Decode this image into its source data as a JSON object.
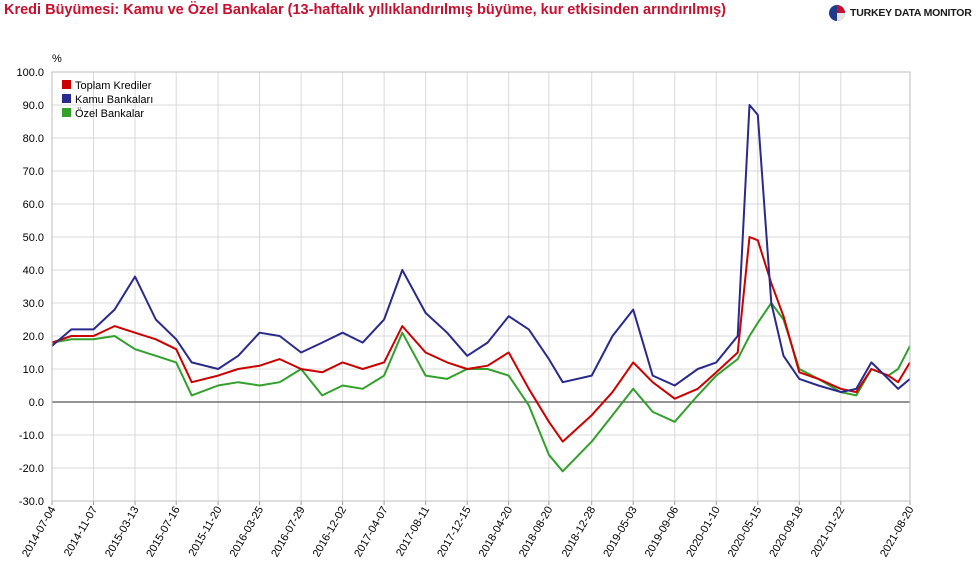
{
  "title": "Kredi Büyümesi: Kamu ve Özel Bankalar (13-haftalık yıllıklandırılmış büyüme, kur etkisinden arındırılmış)",
  "brand": "TURKEY DATA MONITOR",
  "chart_data": {
    "type": "line",
    "title": "Kredi Büyümesi: Kamu ve Özel Bankalar (13-haftalık yıllıklandırılmış büyüme, kur etkisinden arındırılmış)",
    "ylabel": "%",
    "ylim": [
      -30,
      100
    ],
    "yticks": [
      "100.0",
      "90.0",
      "80.0",
      "70.0",
      "60.0",
      "50.0",
      "40.0",
      "30.0",
      "20.0",
      "10.0",
      "0.0",
      "-10.0",
      "-20.0",
      "-30.0"
    ],
    "xlim": [
      "2014-07-04",
      "2021-08-20"
    ],
    "xticks": [
      "2014-07-04",
      "2014-11-07",
      "2015-03-13",
      "2015-07-16",
      "2015-11-20",
      "2016-03-25",
      "2016-07-29",
      "2016-12-02",
      "2017-04-07",
      "2017-08-11",
      "2017-12-15",
      "2018-04-20",
      "2018-08-20",
      "2018-12-28",
      "2019-05-03",
      "2019-09-06",
      "2020-01-10",
      "2020-05-15",
      "2020-09-18",
      "2021-01-22",
      "2021-08-20"
    ],
    "grid": true,
    "legend_position": "top-left",
    "series": [
      {
        "name": "Toplam Krediler",
        "color": "#cc0000",
        "x": [
          "2014-07-04",
          "2014-09-01",
          "2014-11-07",
          "2015-01-10",
          "2015-03-13",
          "2015-05-15",
          "2015-07-16",
          "2015-09-01",
          "2015-11-20",
          "2016-01-20",
          "2016-03-25",
          "2016-05-25",
          "2016-07-29",
          "2016-10-01",
          "2016-12-02",
          "2017-02-01",
          "2017-04-07",
          "2017-06-01",
          "2017-08-11",
          "2017-10-15",
          "2017-12-15",
          "2018-02-15",
          "2018-04-20",
          "2018-06-20",
          "2018-08-20",
          "2018-10-01",
          "2018-12-28",
          "2019-03-01",
          "2019-05-03",
          "2019-07-01",
          "2019-09-06",
          "2019-11-15",
          "2020-01-10",
          "2020-03-15",
          "2020-04-20",
          "2020-05-15",
          "2020-06-25",
          "2020-08-01",
          "2020-09-18",
          "2020-11-15",
          "2021-01-22",
          "2021-03-10",
          "2021-04-25",
          "2021-06-15",
          "2021-07-15",
          "2021-08-20"
        ],
        "values": [
          18,
          20,
          20,
          23,
          21,
          19,
          16,
          6,
          8,
          10,
          11,
          13,
          10,
          9,
          12,
          10,
          12,
          23,
          15,
          12,
          10,
          11,
          15,
          4,
          -6,
          -12,
          -4,
          3,
          12,
          6,
          1,
          4,
          9,
          15,
          50,
          49,
          36,
          26,
          9,
          7,
          4,
          3,
          10,
          8,
          6,
          12
        ]
      },
      {
        "name": "Kamu Bankaları",
        "color": "#2a2a8c",
        "x": [
          "2014-07-04",
          "2014-09-01",
          "2014-11-07",
          "2015-01-10",
          "2015-03-13",
          "2015-05-15",
          "2015-07-16",
          "2015-09-01",
          "2015-11-20",
          "2016-01-20",
          "2016-03-25",
          "2016-05-25",
          "2016-07-29",
          "2016-10-01",
          "2016-12-02",
          "2017-02-01",
          "2017-04-07",
          "2017-06-01",
          "2017-08-11",
          "2017-10-15",
          "2017-12-15",
          "2018-02-15",
          "2018-04-20",
          "2018-06-20",
          "2018-08-20",
          "2018-10-01",
          "2018-12-28",
          "2019-03-01",
          "2019-05-03",
          "2019-07-01",
          "2019-09-06",
          "2019-11-15",
          "2020-01-10",
          "2020-03-15",
          "2020-04-20",
          "2020-05-15",
          "2020-06-25",
          "2020-08-01",
          "2020-09-18",
          "2020-11-15",
          "2021-01-22",
          "2021-03-10",
          "2021-04-25",
          "2021-06-15",
          "2021-07-15",
          "2021-08-20"
        ],
        "values": [
          17,
          22,
          22,
          28,
          38,
          25,
          19,
          12,
          10,
          14,
          21,
          20,
          15,
          18,
          21,
          18,
          25,
          40,
          27,
          21,
          14,
          18,
          26,
          22,
          13,
          6,
          8,
          20,
          28,
          8,
          5,
          10,
          12,
          20,
          90,
          87,
          30,
          14,
          7,
          5,
          3,
          4,
          12,
          7,
          4,
          7
        ]
      },
      {
        "name": "Özel Bankalar",
        "color": "#33a02c",
        "x": [
          "2014-07-04",
          "2014-09-01",
          "2014-11-07",
          "2015-01-10",
          "2015-03-13",
          "2015-05-15",
          "2015-07-16",
          "2015-09-01",
          "2015-11-20",
          "2016-01-20",
          "2016-03-25",
          "2016-05-25",
          "2016-07-29",
          "2016-10-01",
          "2016-12-02",
          "2017-02-01",
          "2017-04-07",
          "2017-06-01",
          "2017-08-11",
          "2017-10-15",
          "2017-12-15",
          "2018-02-15",
          "2018-04-20",
          "2018-06-20",
          "2018-08-20",
          "2018-10-01",
          "2018-12-28",
          "2019-03-01",
          "2019-05-03",
          "2019-07-01",
          "2019-09-06",
          "2019-11-15",
          "2020-01-10",
          "2020-03-15",
          "2020-04-20",
          "2020-05-15",
          "2020-06-25",
          "2020-08-01",
          "2020-09-18",
          "2020-11-15",
          "2021-01-22",
          "2021-03-10",
          "2021-04-25",
          "2021-06-15",
          "2021-07-15",
          "2021-08-20"
        ],
        "values": [
          18,
          19,
          19,
          20,
          16,
          14,
          12,
          2,
          5,
          6,
          5,
          6,
          10,
          2,
          5,
          4,
          8,
          21,
          8,
          7,
          10,
          10,
          8,
          -1,
          -16,
          -21,
          -12,
          -4,
          4,
          -3,
          -6,
          2,
          8,
          13,
          20,
          24,
          30,
          25,
          10,
          7,
          3,
          2,
          10,
          8,
          10,
          17
        ]
      }
    ]
  }
}
